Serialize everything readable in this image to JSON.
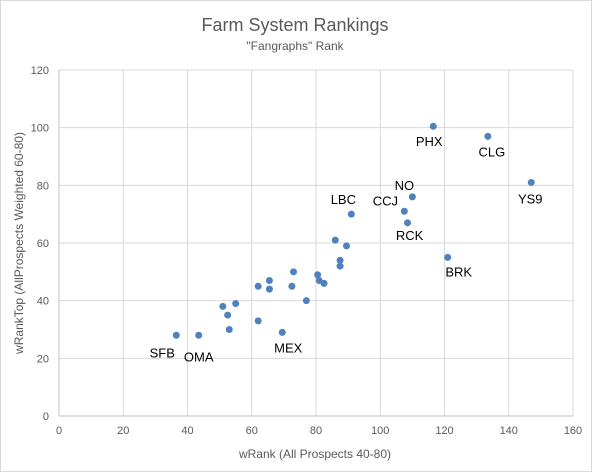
{
  "chart_data": {
    "type": "scatter",
    "title": "Farm System Rankings",
    "subtitle": "\"Fangraphs\" Rank",
    "xlabel": "wRank (All Prospects 40-80)",
    "ylabel": "wRankTop (AllProspects Weighted 60-80)",
    "xlim": [
      0,
      160
    ],
    "ylim": [
      0,
      120
    ],
    "xticks": [
      0,
      20,
      40,
      60,
      80,
      100,
      120,
      140,
      160
    ],
    "yticks": [
      0,
      20,
      40,
      60,
      80,
      100,
      120
    ],
    "grid": true,
    "marker_color": "#4f81bd",
    "points": [
      {
        "x": 116.5,
        "y": 100.5,
        "label": "PHX"
      },
      {
        "x": 133.5,
        "y": 97,
        "label": "CLG"
      },
      {
        "x": 147,
        "y": 81,
        "label": "YS9"
      },
      {
        "x": 110,
        "y": 76,
        "label": "NO"
      },
      {
        "x": 107.5,
        "y": 71,
        "label": "CCJ"
      },
      {
        "x": 91,
        "y": 70,
        "label": "LBC"
      },
      {
        "x": 108.5,
        "y": 67,
        "label": "RCK"
      },
      {
        "x": 121,
        "y": 55,
        "label": "BRK"
      },
      {
        "x": 86,
        "y": 61,
        "label": ""
      },
      {
        "x": 89.5,
        "y": 59,
        "label": ""
      },
      {
        "x": 87.5,
        "y": 54,
        "label": ""
      },
      {
        "x": 87.5,
        "y": 52,
        "label": ""
      },
      {
        "x": 80.5,
        "y": 49,
        "label": ""
      },
      {
        "x": 81,
        "y": 47,
        "label": ""
      },
      {
        "x": 82.5,
        "y": 46,
        "label": ""
      },
      {
        "x": 73,
        "y": 50,
        "label": ""
      },
      {
        "x": 72.5,
        "y": 45,
        "label": ""
      },
      {
        "x": 77,
        "y": 40,
        "label": ""
      },
      {
        "x": 65.5,
        "y": 47,
        "label": ""
      },
      {
        "x": 65.5,
        "y": 44,
        "label": ""
      },
      {
        "x": 62,
        "y": 45,
        "label": ""
      },
      {
        "x": 55,
        "y": 39,
        "label": ""
      },
      {
        "x": 51,
        "y": 38,
        "label": ""
      },
      {
        "x": 52.5,
        "y": 35,
        "label": ""
      },
      {
        "x": 62,
        "y": 33,
        "label": ""
      },
      {
        "x": 53,
        "y": 30,
        "label": ""
      },
      {
        "x": 69.5,
        "y": 29,
        "label": "MEX"
      },
      {
        "x": 43.5,
        "y": 28,
        "label": "OMA"
      },
      {
        "x": 36.5,
        "y": 28,
        "label": "SFB"
      }
    ]
  }
}
